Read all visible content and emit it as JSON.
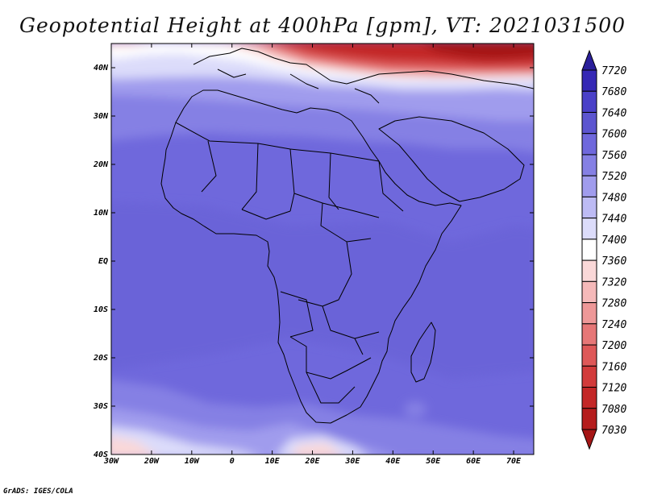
{
  "title": "Geopotential Height at 400hPa [gpm], VT: 2021031500",
  "credit": "GrADS: IGES/COLA",
  "map": {
    "lon_range": [
      -30,
      75
    ],
    "lat_range": [
      -40,
      45
    ],
    "x_ticks": [
      "30W",
      "20W",
      "10W",
      "0",
      "10E",
      "20E",
      "30E",
      "40E",
      "50E",
      "60E",
      "70E"
    ],
    "x_tick_lons": [
      -30,
      -20,
      -10,
      0,
      10,
      20,
      30,
      40,
      50,
      60,
      70
    ],
    "y_ticks": [
      "40N",
      "30N",
      "20N",
      "10N",
      "EQ",
      "10S",
      "20S",
      "30S",
      "40S"
    ],
    "y_tick_lats": [
      40,
      30,
      20,
      10,
      0,
      -10,
      -20,
      -30,
      -40
    ]
  },
  "colorbar": {
    "labels": [
      "7720",
      "7680",
      "7640",
      "7600",
      "7560",
      "7520",
      "7480",
      "7440",
      "7400",
      "7360",
      "7320",
      "7280",
      "7240",
      "7200",
      "7160",
      "7120",
      "7080",
      "7030"
    ],
    "colors": [
      "#2a1f9a",
      "#3528b5",
      "#4a40c8",
      "#5c55d0",
      "#6f68dc",
      "#8580e4",
      "#a09ced",
      "#bdbbf4",
      "#dcdcfa",
      "#ffffff",
      "#fad8d8",
      "#f5b9b9",
      "#ee9898",
      "#e67777",
      "#de5858",
      "#d23b3b",
      "#c32727",
      "#b51d1d",
      "#a51616"
    ]
  }
}
